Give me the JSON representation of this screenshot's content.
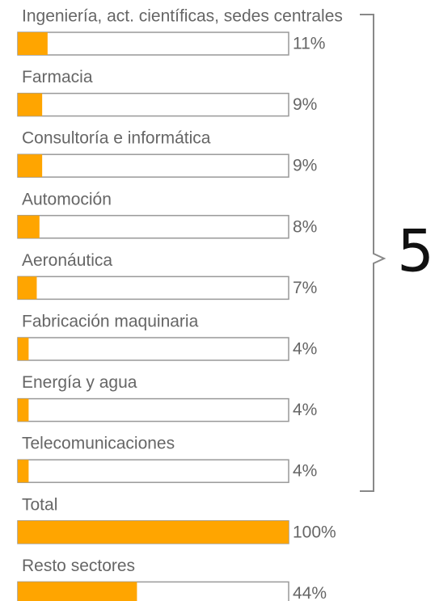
{
  "chart_data": {
    "type": "bar",
    "categories": [
      "Ingeniería, act. científicas, sedes centrales",
      "Farmacia",
      "Consultoría e informática",
      "Automoción",
      "Aeronáutica",
      "Fabricación maquinaria",
      "Energía y agua",
      "Telecomunicaciones",
      "Total",
      "Resto sectores"
    ],
    "values": [
      11,
      9,
      9,
      8,
      7,
      4,
      4,
      4,
      100,
      44
    ],
    "value_labels": [
      "11%",
      "9%",
      "9%",
      "8%",
      "7%",
      "4%",
      "4%",
      "4%",
      "100%",
      "44%"
    ],
    "color": "#ffa500",
    "xlim": [
      0,
      100
    ],
    "annotation": "5"
  }
}
